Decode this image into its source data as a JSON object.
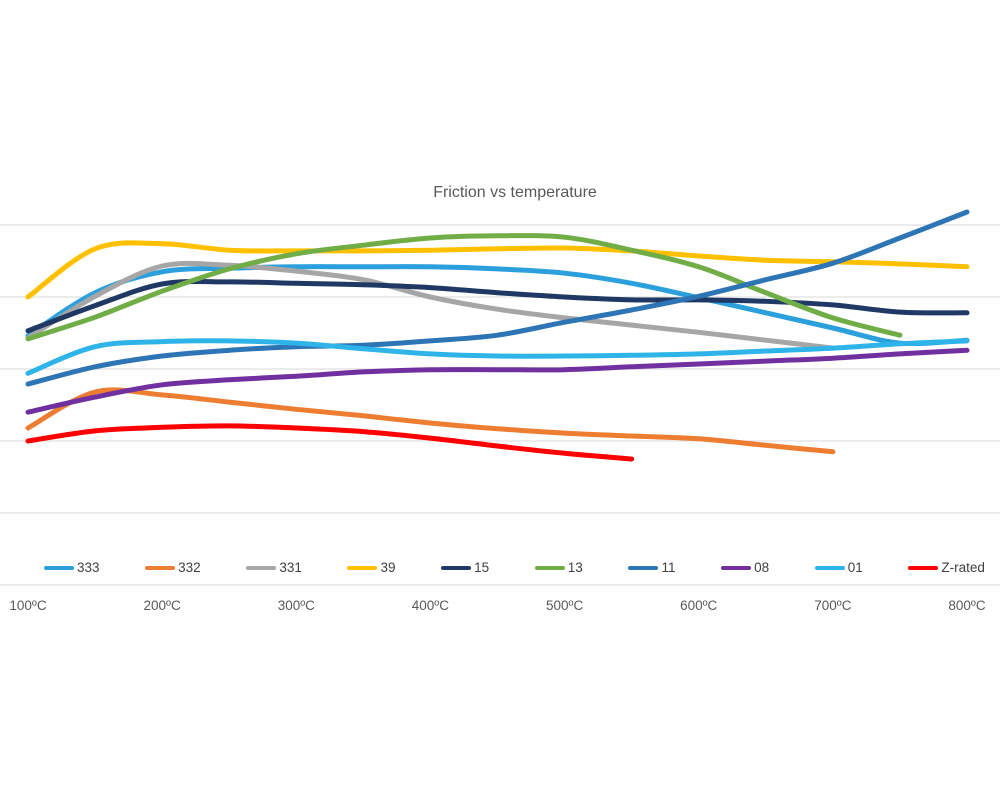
{
  "colors": {
    "background": "#ffffff",
    "gridline": "#d9d9d9",
    "title_text": "#595959",
    "axis_text": "#595959",
    "legend_text": "#404040"
  },
  "chart_data": {
    "type": "line",
    "title": "Friction vs temperature",
    "xlabel": "",
    "ylabel": "",
    "x_unit": "ºC",
    "x_tick_labels": [
      "100ºC",
      "200ºC",
      "300ºC",
      "400ºC",
      "500ºC",
      "600ºC",
      "700ºC",
      "800ºC"
    ],
    "x_tick_values": [
      100,
      200,
      300,
      400,
      500,
      600,
      700,
      800
    ],
    "x_range": [
      100,
      800
    ],
    "y_axis_labels_visible": false,
    "y_gridline_units": [
      0,
      1,
      2,
      3,
      4,
      5
    ],
    "grid": "horizontal-only",
    "smooth_lines": true,
    "legend_position": "bottom",
    "series": [
      {
        "name": "333",
        "color": "#2ba0dc",
        "x": [
          100,
          150,
          200,
          250,
          300,
          350,
          400,
          450,
          500,
          550,
          600,
          650,
          700,
          750,
          800
        ],
        "values": [
          3.46,
          4.06,
          4.35,
          4.4,
          4.42,
          4.42,
          4.42,
          4.39,
          4.33,
          4.19,
          3.99,
          3.78,
          3.57,
          3.36,
          3.4
        ]
      },
      {
        "name": "332",
        "color": "#ed7d31",
        "x": [
          100,
          150,
          200,
          250,
          300,
          350,
          400,
          450,
          500,
          550,
          600,
          650,
          700
        ],
        "values": [
          2.18,
          2.68,
          2.64,
          2.54,
          2.44,
          2.35,
          2.25,
          2.17,
          2.11,
          2.07,
          2.03,
          1.94,
          1.85
        ]
      },
      {
        "name": "331",
        "color": "#a6a6a6",
        "x": [
          100,
          150,
          200,
          250,
          300,
          350,
          400,
          450,
          500,
          550,
          600,
          650,
          700
        ],
        "values": [
          3.43,
          4.01,
          4.43,
          4.44,
          4.36,
          4.24,
          4.0,
          3.83,
          3.71,
          3.61,
          3.51,
          3.4,
          3.29
        ]
      },
      {
        "name": "39",
        "color": "#ffc000",
        "x": [
          100,
          150,
          200,
          250,
          300,
          350,
          400,
          450,
          500,
          550,
          600,
          650,
          700,
          750,
          800
        ],
        "values": [
          4.0,
          4.67,
          4.74,
          4.65,
          4.64,
          4.64,
          4.65,
          4.67,
          4.68,
          4.64,
          4.57,
          4.51,
          4.49,
          4.46,
          4.42
        ]
      },
      {
        "name": "15",
        "color": "#1f3864",
        "x": [
          100,
          150,
          200,
          250,
          300,
          350,
          400,
          450,
          500,
          550,
          600,
          650,
          700,
          750,
          800
        ],
        "values": [
          3.53,
          3.88,
          4.18,
          4.21,
          4.19,
          4.17,
          4.13,
          4.06,
          4.0,
          3.96,
          3.96,
          3.94,
          3.89,
          3.79,
          3.78
        ]
      },
      {
        "name": "13",
        "color": "#70ad47",
        "x": [
          100,
          150,
          200,
          250,
          300,
          350,
          400,
          450,
          500,
          550,
          600,
          650,
          700,
          750
        ],
        "values": [
          3.42,
          3.72,
          4.08,
          4.39,
          4.6,
          4.72,
          4.82,
          4.85,
          4.83,
          4.65,
          4.42,
          4.06,
          3.71,
          3.47
        ]
      },
      {
        "name": "11",
        "color": "#2e75b6",
        "x": [
          100,
          150,
          200,
          250,
          300,
          350,
          400,
          450,
          500,
          550,
          600,
          650,
          700,
          750,
          800
        ],
        "values": [
          2.79,
          3.03,
          3.18,
          3.26,
          3.31,
          3.33,
          3.39,
          3.47,
          3.65,
          3.82,
          4.01,
          4.24,
          4.47,
          4.82,
          5.18
        ]
      },
      {
        "name": "08",
        "color": "#7030a0",
        "x": [
          100,
          150,
          200,
          250,
          300,
          350,
          400,
          450,
          500,
          550,
          600,
          650,
          700,
          750,
          800
        ],
        "values": [
          2.4,
          2.61,
          2.78,
          2.85,
          2.9,
          2.96,
          2.99,
          2.99,
          2.99,
          3.03,
          3.07,
          3.11,
          3.15,
          3.21,
          3.26
        ]
      },
      {
        "name": "01",
        "color": "#2fb4e9",
        "x": [
          100,
          150,
          200,
          250,
          300,
          350,
          400,
          450,
          500,
          550,
          600,
          650,
          700,
          750,
          800
        ],
        "values": [
          2.94,
          3.31,
          3.38,
          3.39,
          3.36,
          3.28,
          3.21,
          3.18,
          3.18,
          3.19,
          3.21,
          3.25,
          3.29,
          3.35,
          3.39
        ]
      },
      {
        "name": "Z-rated",
        "color": "#ff0000",
        "x": [
          100,
          150,
          200,
          250,
          300,
          350,
          400,
          450,
          500,
          550
        ],
        "values": [
          2.0,
          2.14,
          2.19,
          2.21,
          2.18,
          2.13,
          2.04,
          1.93,
          1.83,
          1.75
        ]
      }
    ]
  }
}
